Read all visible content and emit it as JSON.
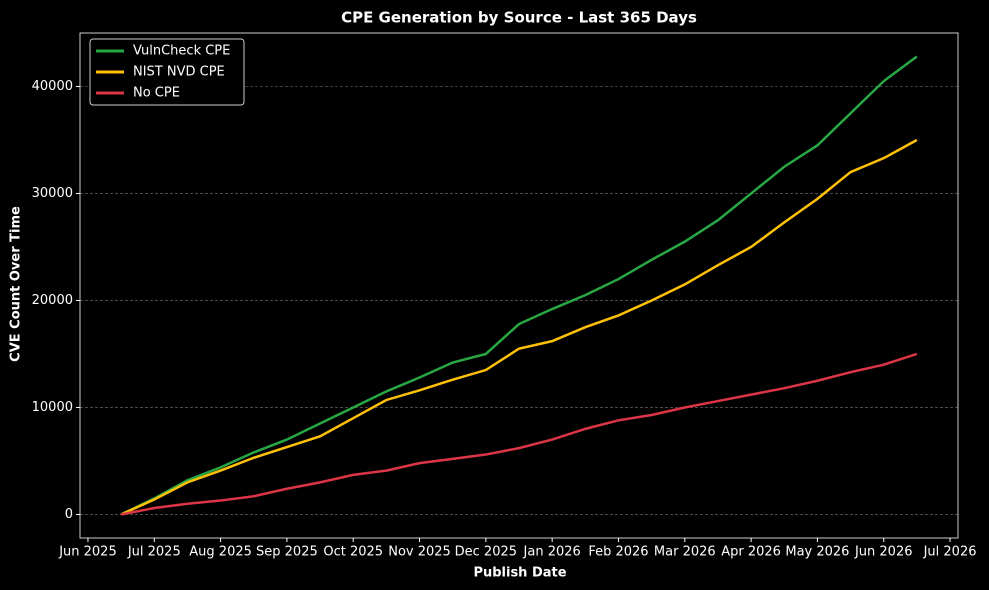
{
  "chart_data": {
    "type": "line",
    "title": "CPE Generation by Source - Last 365 Days",
    "x_label": "Publish Date",
    "y_label": "CVE Count Over Time",
    "x": [
      0.5,
      1,
      1.5,
      2,
      2.5,
      3,
      3.5,
      4,
      4.5,
      5,
      5.5,
      6,
      6.5,
      7,
      7.5,
      8,
      8.5,
      9,
      9.5,
      10,
      10.5,
      11,
      11.5,
      12,
      12.5
    ],
    "series": [
      {
        "name": "VulnCheck CPE",
        "color": "#28a745",
        "values": [
          0,
          1500,
          3200,
          4400,
          5800,
          7000,
          8500,
          10000,
          11500,
          12800,
          14200,
          15000,
          17800,
          19200,
          20500,
          22000,
          23800,
          25500,
          27500,
          30000,
          32500,
          34500,
          37500,
          40500,
          42800
        ]
      },
      {
        "name": "NIST NVD CPE",
        "color": "#ffc107",
        "values": [
          0,
          1400,
          3000,
          4100,
          5300,
          6300,
          7300,
          9000,
          10700,
          11600,
          12600,
          13500,
          15500,
          16200,
          17500,
          18600,
          20000,
          21500,
          23300,
          25000,
          27300,
          29500,
          32000,
          33300,
          35000
        ]
      },
      {
        "name": "No CPE",
        "color": "#dc3545",
        "values": [
          0,
          600,
          1000,
          1300,
          1700,
          2400,
          3000,
          3700,
          4100,
          4800,
          5200,
          5600,
          6200,
          7000,
          8000,
          8800,
          9300,
          10000,
          10600,
          11200,
          11800,
          12500,
          13300,
          14000,
          15000
        ]
      }
    ],
    "xlim": [
      -0.12,
      13.12
    ],
    "xticks": [
      {
        "value": 0,
        "label": "Jun 2025"
      },
      {
        "value": 1,
        "label": "Jul 2025"
      },
      {
        "value": 2,
        "label": "Aug 2025"
      },
      {
        "value": 3,
        "label": "Sep 2025"
      },
      {
        "value": 4,
        "label": "Oct 2025"
      },
      {
        "value": 5,
        "label": "Nov 2025"
      },
      {
        "value": 6,
        "label": "Dec 2025"
      },
      {
        "value": 7,
        "label": "Jan 2026"
      },
      {
        "value": 8,
        "label": "Feb 2026"
      },
      {
        "value": 9,
        "label": "Mar 2026"
      },
      {
        "value": 10,
        "label": "Apr 2026"
      },
      {
        "value": 11,
        "label": "May 2026"
      },
      {
        "value": 12,
        "label": "Jun 2026"
      },
      {
        "value": 13,
        "label": "Jul 2026"
      }
    ],
    "ylim": [
      -2200,
      45000
    ],
    "yticks": [
      0,
      10000,
      20000,
      30000,
      40000
    ],
    "grid": true,
    "legend": "upper left"
  }
}
